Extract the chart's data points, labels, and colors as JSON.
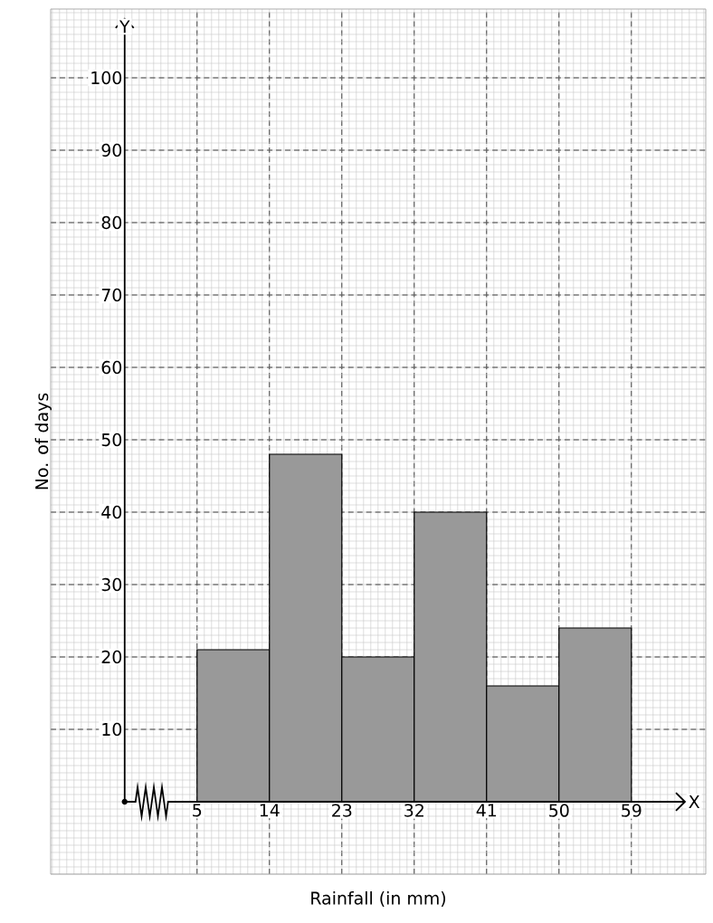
{
  "chart_data": {
    "type": "histogram",
    "xlabel": "Rainfall (in mm)",
    "ylabel": "No. of days",
    "bins": [
      5,
      14,
      23,
      32,
      41,
      50,
      59
    ],
    "values": [
      21,
      48,
      20,
      40,
      16,
      24
    ],
    "color": "#999999",
    "xlim": [
      -13.2,
      68.25
    ],
    "ylim": [
      -10,
      109.5
    ],
    "xticks": [
      5,
      14,
      23,
      32,
      41,
      50,
      59
    ],
    "yticks": [
      10,
      20,
      30,
      40,
      50,
      60,
      70,
      80,
      90,
      100
    ],
    "grid": true,
    "annotations": [
      "X",
      "Y"
    ]
  }
}
